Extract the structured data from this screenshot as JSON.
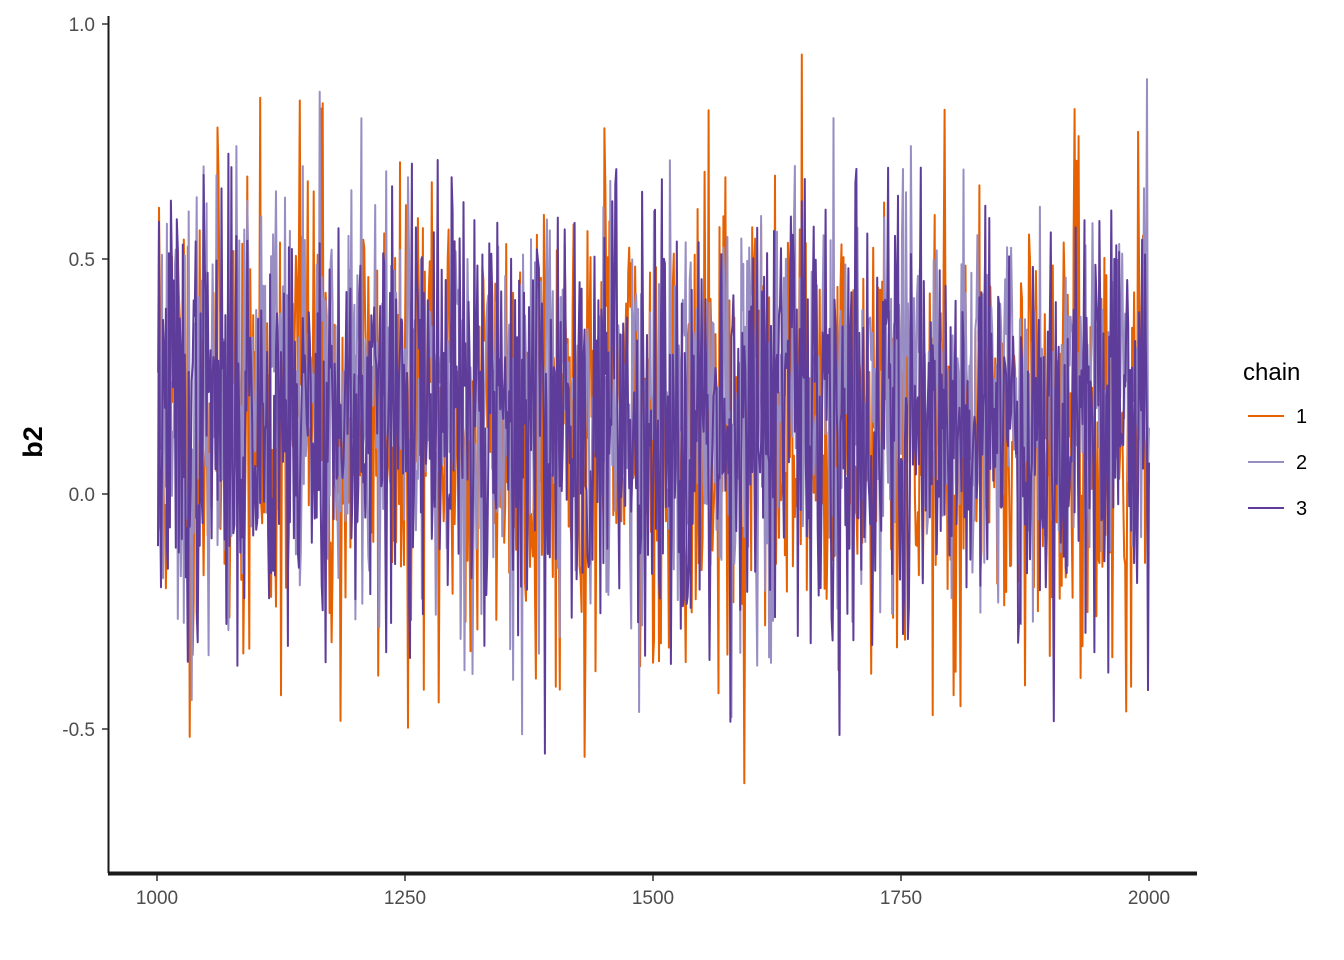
{
  "chart_data": {
    "type": "line",
    "title": "",
    "xlabel": "",
    "ylabel": "b2",
    "xlim": [
      950,
      2045
    ],
    "ylim": [
      -0.8,
      1.02
    ],
    "x_ticks": [
      1000,
      1250,
      1500,
      1750,
      2000
    ],
    "x_tick_labels": [
      "1000",
      "1250",
      "1500",
      "1750",
      "2000"
    ],
    "y_ticks": [
      -0.5,
      0.0,
      0.5,
      1.0
    ],
    "y_tick_labels": [
      "-0.5",
      "0.0",
      "0.5",
      "1.0"
    ],
    "grid": false,
    "legend": {
      "title": "chain",
      "placement": "right"
    },
    "x_start": 1001,
    "x_end": 2000,
    "series": [
      {
        "name": "1",
        "color": "#e66101",
        "values": [
          0.65,
          0.05,
          0.42,
          0.51,
          -0.15,
          0.3,
          0.12,
          0.44,
          -0.08,
          0.22,
          0.18,
          -0.05,
          0.35,
          0.02,
          -0.1,
          0.28,
          0.1,
          0.85,
          0.25,
          0.55,
          0.6,
          -0.27,
          -0.11,
          0.08,
          0.33,
          0.16,
          -0.03,
          0.39,
          0.21,
          0.05,
          -0.12,
          0.27,
          0.48,
          0.14,
          -0.2,
          0.36,
          0.09,
          0.18,
          -0.32,
          0.25,
          0.41,
          0.11,
          -0.06,
          0.22,
          0.3,
          -0.18,
          0.42,
          0.07,
          0.15,
          0.45,
          0.33,
          -0.09,
          0.19,
          0.26,
          0.4,
          0.12,
          0.04,
          0.35,
          -0.14,
          0.23,
          0.17,
          -0.24,
          0.38,
          0.28,
          0.09,
          -0.07,
          0.31,
          0.14,
          0.21,
          0.06,
          -0.15,
          0.29,
          0.43,
          0.1,
          -0.3,
          0.24,
          0.18,
          0.81,
          -0.1,
          0.32,
          0.15,
          -0.22,
          0.37,
          0.08,
          0.26,
          0.19,
          -0.05,
          0.34,
          0.12,
          0.22,
          0.47,
          -0.16,
          0.2,
          0.09,
          0.36,
          0.13,
          -0.25,
          0.29,
          0.17,
          0.05,
          0.31,
          0.24,
          0.12,
          -0.08,
          0.38,
          0.2,
          0.1,
          0.27,
          -0.13,
          0.33,
          0.44,
          -0.4,
          0.15,
          0.25,
          0.06,
          0.3,
          -0.2,
          0.18,
          0.35,
          0.11
        ],
        "amplitude": 0.24,
        "seed": 11
      },
      {
        "name": "2",
        "color": "#998ec3",
        "values": [
          0.19,
          0.42,
          0.28,
          0.12,
          0.35,
          0.15,
          0.22,
          0.4,
          0.05,
          0.3,
          0.53,
          0.18,
          0.09,
          0.25,
          0.32,
          0.14,
          0.45,
          0.2,
          0.11,
          0.38,
          0.26,
          0.03,
          0.3,
          0.16,
          0.42,
          0.22,
          0.08,
          0.34,
          0.19,
          0.12,
          0.28,
          0.46,
          0.15,
          0.24,
          0.36,
          0.1,
          0.2,
          0.31,
          0.05,
          0.27,
          0.41,
          0.17,
          0.22,
          0.33,
          0.13,
          0.29,
          0.18,
          0.38,
          0.24,
          0.09,
          0.3,
          0.21,
          0.16,
          0.35,
          0.26,
          0.12,
          0.43,
          0.2,
          0.28,
          0.14,
          0.32,
          0.23,
          0.37,
          0.11,
          0.25,
          0.19,
          0.3,
          0.16,
          0.27,
          0.34,
          0.13,
          0.22,
          0.29,
          0.18,
          0.4,
          0.24,
          0.15,
          0.31,
          0.2,
          0.26
        ],
        "amplitude": 0.22,
        "seed": 23
      },
      {
        "name": "3",
        "color": "#5e3c99",
        "values": [
          0.13,
          0.28,
          0.04,
          0.35,
          0.18,
          0.25,
          0.1,
          0.31,
          0.22,
          0.08,
          0.27,
          0.16,
          0.33,
          0.12,
          0.2,
          0.29,
          0.06,
          0.24,
          0.3,
          0.15,
          0.21,
          0.09,
          0.34,
          0.18,
          0.26,
          0.11,
          0.28,
          0.19,
          0.23,
          0.14,
          0.32,
          0.07,
          0.25,
          0.2,
          0.17,
          0.3,
          0.12,
          0.27,
          0.22,
          0.16,
          0.29,
          0.1,
          0.24,
          0.19,
          0.31,
          0.13,
          0.26,
          0.21,
          0.15,
          0.28,
          0.18,
          0.23,
          0.11,
          0.3,
          0.2,
          0.25,
          0.14,
          0.27,
          0.17,
          0.22
        ],
        "amplitude": 0.23,
        "seed": 37
      }
    ]
  }
}
